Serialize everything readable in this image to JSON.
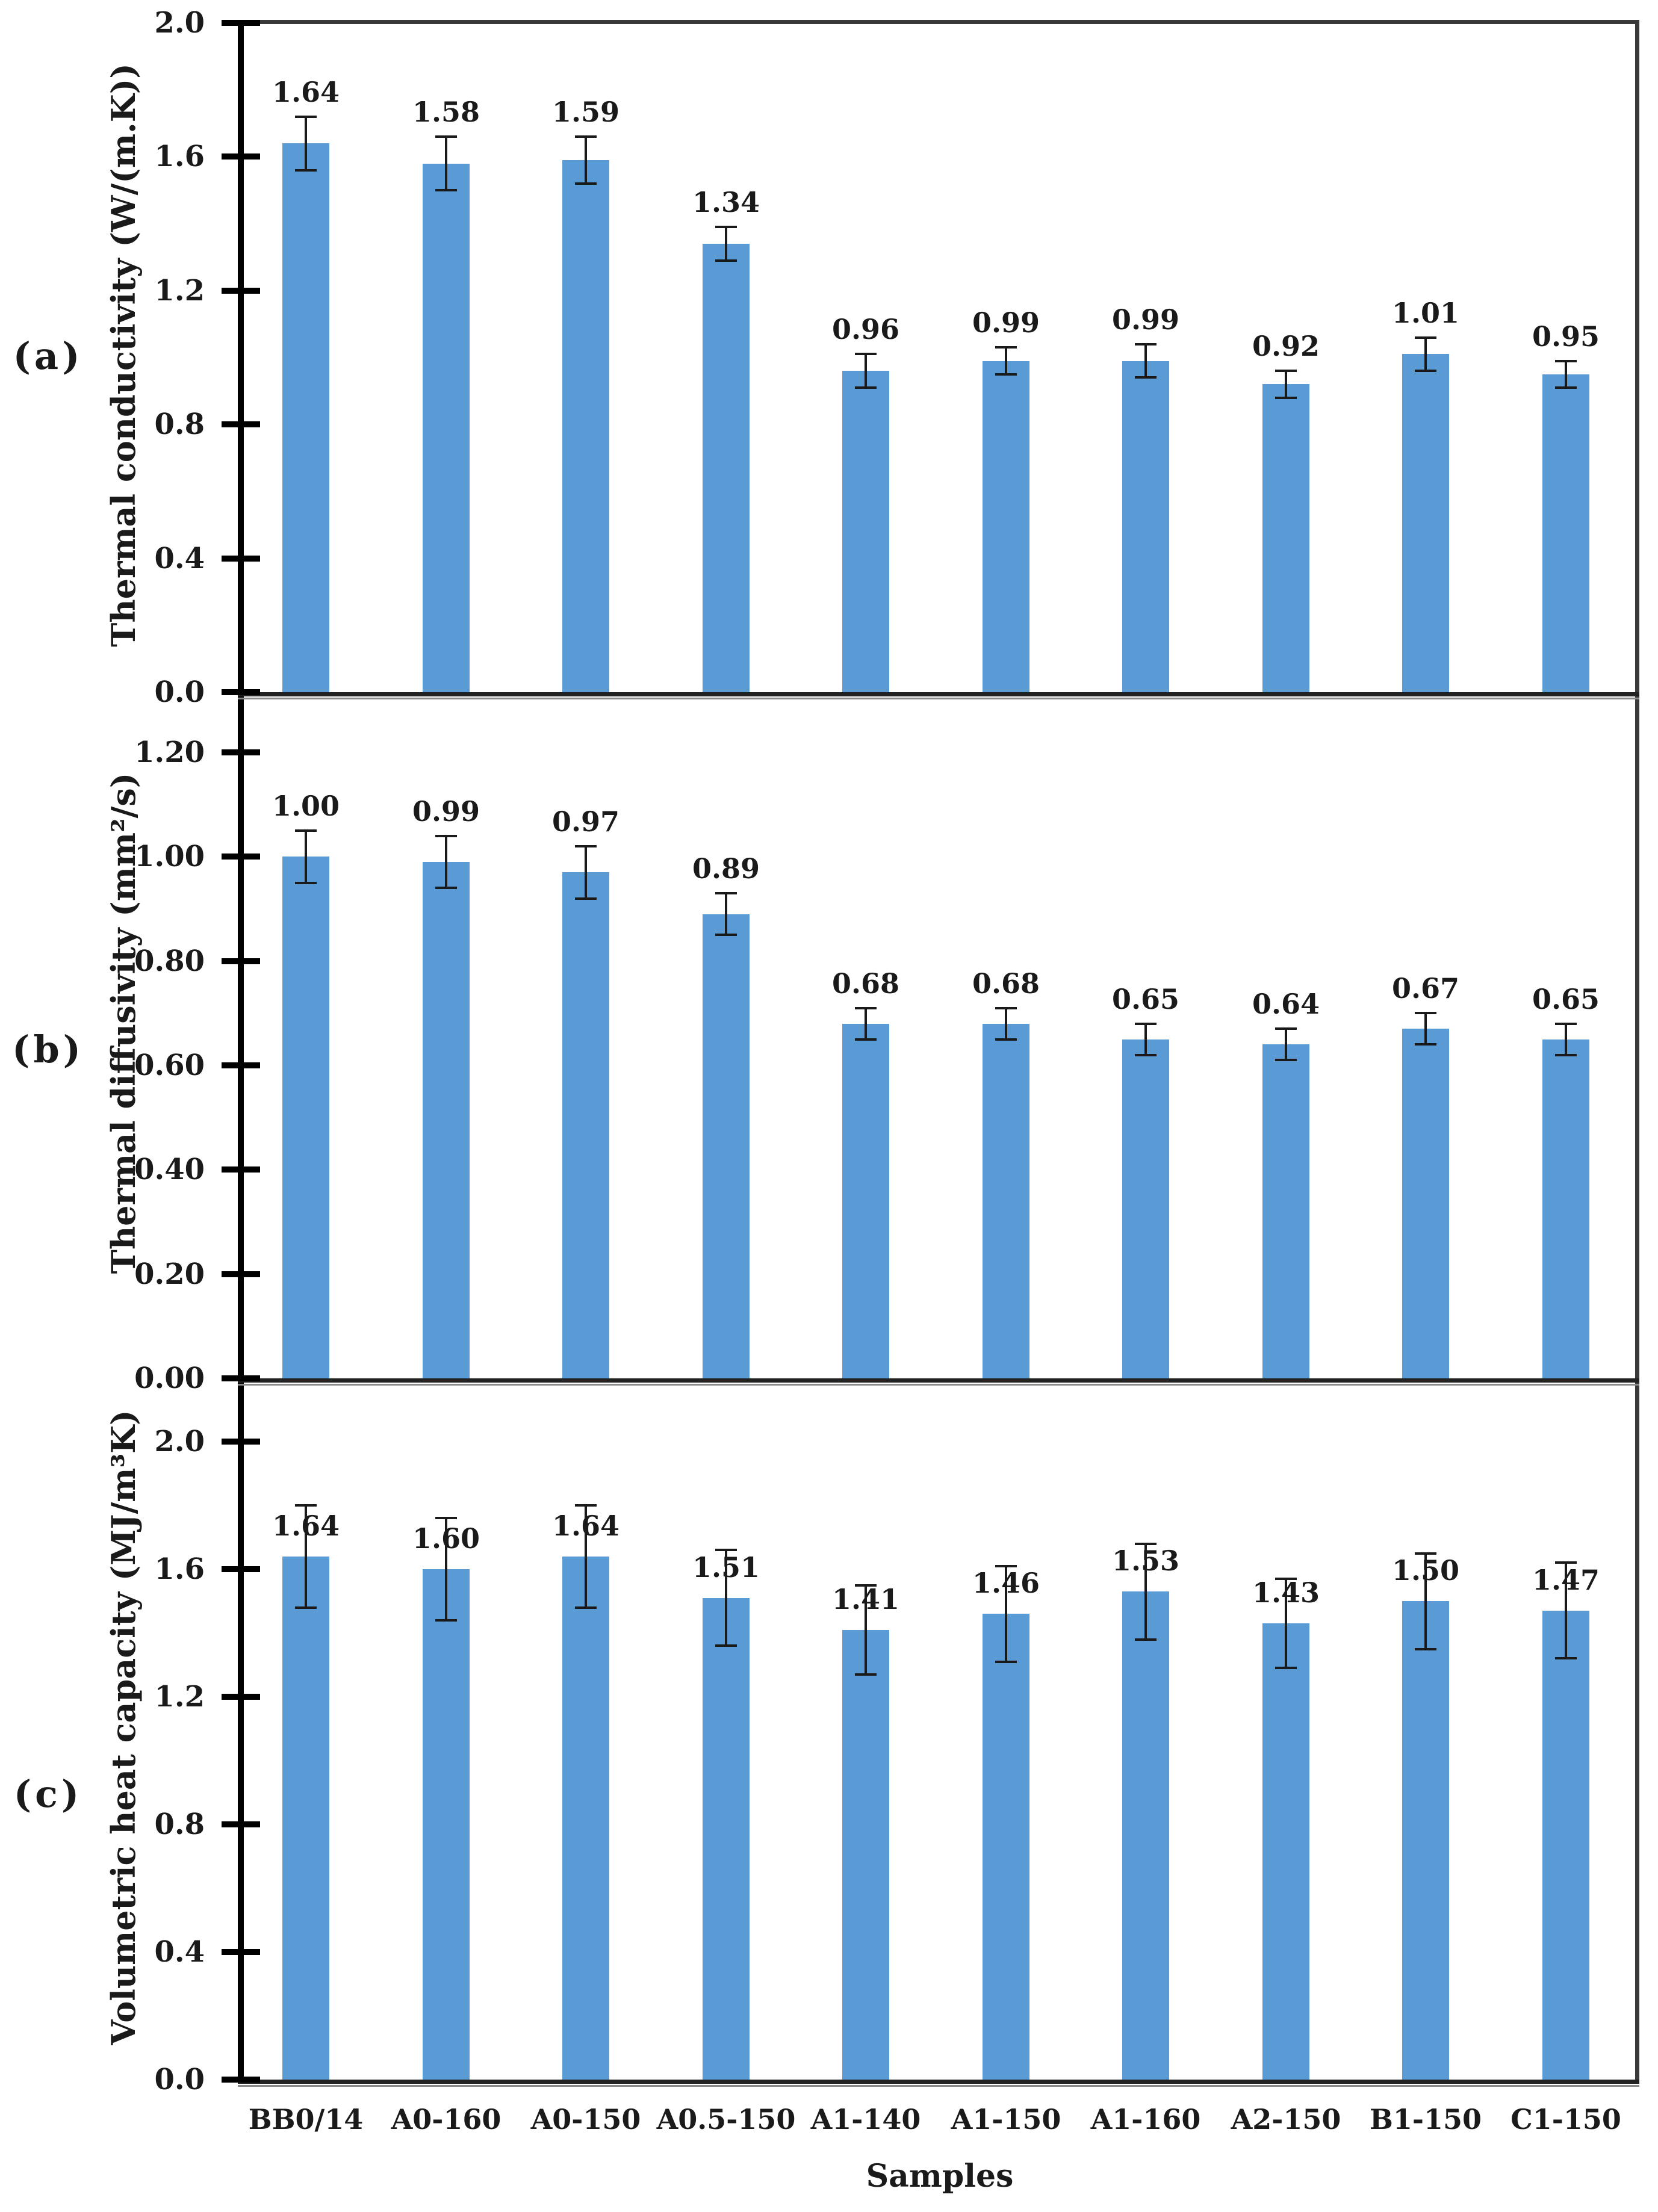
{
  "figure": {
    "xlabel": "Samples",
    "background_color": "#ffffff",
    "bar_color": "#5b9bd5",
    "axis_color": "#000000",
    "frame_color": "#3a3a3a",
    "error_bar_color": "#1a1a1a",
    "text_color": "#1a1a1a"
  },
  "chart_data": [
    {
      "type": "bar",
      "panel_letter": "(a)",
      "ylabel": "Thermal conductivity (W/(m.K))",
      "xlabel": "",
      "categories": [
        "BB0/14",
        "A0-160",
        "A0-150",
        "A0.5-150",
        "A1-140",
        "A1-150",
        "A1-160",
        "A2-150",
        "B1-150",
        "C1-150"
      ],
      "values": [
        1.64,
        1.58,
        1.59,
        1.34,
        0.96,
        0.99,
        0.99,
        0.92,
        1.01,
        0.95
      ],
      "errors": [
        0.08,
        0.08,
        0.07,
        0.05,
        0.05,
        0.04,
        0.05,
        0.04,
        0.05,
        0.04
      ],
      "value_labels": [
        "1.64",
        "1.58",
        "1.59",
        "1.34",
        "0.96",
        "0.99",
        "0.99",
        "0.92",
        "1.01",
        "0.95"
      ],
      "ylim": [
        0.0,
        2.0
      ],
      "ytick_labels": [
        "2.0",
        "1.6",
        "1.2",
        "0.8",
        "0.4",
        "0.0"
      ],
      "grid": false,
      "legend": "none",
      "error_bars": true
    },
    {
      "type": "bar",
      "panel_letter": "(b)",
      "ylabel": "Thermal diffusivity (mm²/s)",
      "xlabel": "",
      "categories": [
        "BB0/14",
        "A0-160",
        "A0-150",
        "A0.5-150",
        "A1-140",
        "A1-150",
        "A1-160",
        "A2-150",
        "B1-150",
        "C1-150"
      ],
      "values": [
        1.0,
        0.99,
        0.97,
        0.89,
        0.68,
        0.68,
        0.65,
        0.64,
        0.67,
        0.65
      ],
      "errors": [
        0.05,
        0.05,
        0.05,
        0.04,
        0.03,
        0.03,
        0.03,
        0.03,
        0.03,
        0.03
      ],
      "value_labels": [
        "1.00",
        "0.99",
        "0.97",
        "0.89",
        "0.68",
        "0.68",
        "0.65",
        "0.64",
        "0.67",
        "0.65"
      ],
      "ylim": [
        0.0,
        1.32
      ],
      "ytick_labels": [
        "1.20",
        "1.00",
        "0.80",
        "0.60",
        "0.40",
        "0.20",
        "0.00"
      ],
      "grid": false,
      "legend": "none",
      "error_bars": true
    },
    {
      "type": "bar",
      "panel_letter": "(c)",
      "ylabel": "Volumetric heat capacity (MJ/m³K)",
      "xlabel": "Samples",
      "categories": [
        "BB0/14",
        "A0-160",
        "A0-150",
        "A0.5-150",
        "A1-140",
        "A1-150",
        "A1-160",
        "A2-150",
        "B1-150",
        "C1-150"
      ],
      "values": [
        1.64,
        1.6,
        1.64,
        1.51,
        1.41,
        1.46,
        1.53,
        1.43,
        1.5,
        1.47
      ],
      "errors": [
        0.16,
        0.16,
        0.16,
        0.15,
        0.14,
        0.15,
        0.15,
        0.14,
        0.15,
        0.15
      ],
      "value_labels": [
        "1.64",
        "1.60",
        "1.64",
        "1.51",
        "1.41",
        "1.46",
        "1.53",
        "1.43",
        "1.50",
        "1.47"
      ],
      "ylim": [
        0.0,
        2.2
      ],
      "ytick_labels": [
        "2.0",
        "1.6",
        "1.2",
        "0.8",
        "0.4",
        "0.0"
      ],
      "grid": false,
      "legend": "none",
      "error_bars": true
    }
  ]
}
